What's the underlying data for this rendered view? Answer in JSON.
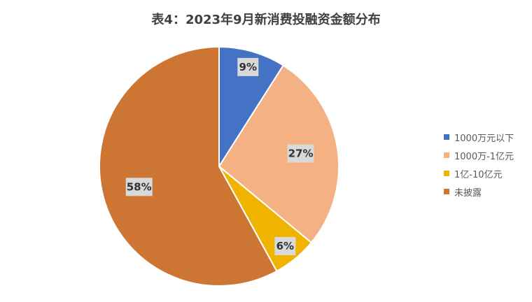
{
  "chart_data": {
    "type": "pie",
    "title": "表4：2023年9月新消费投融资金额分布",
    "series": [
      {
        "name": "1000万元以下",
        "value": 9,
        "label": "9%",
        "color": "#4472C4"
      },
      {
        "name": "1000万-1亿元",
        "value": 27,
        "label": "27%",
        "color": "#F4B183"
      },
      {
        "name": "1亿-10亿元",
        "value": 6,
        "label": "6%",
        "color": "#F0B400"
      },
      {
        "name": "未披露",
        "value": 58,
        "label": "58%",
        "color": "#CD7634"
      }
    ],
    "legend_position": "right",
    "start_angle": "12-o'clock",
    "direction": "clockwise"
  }
}
